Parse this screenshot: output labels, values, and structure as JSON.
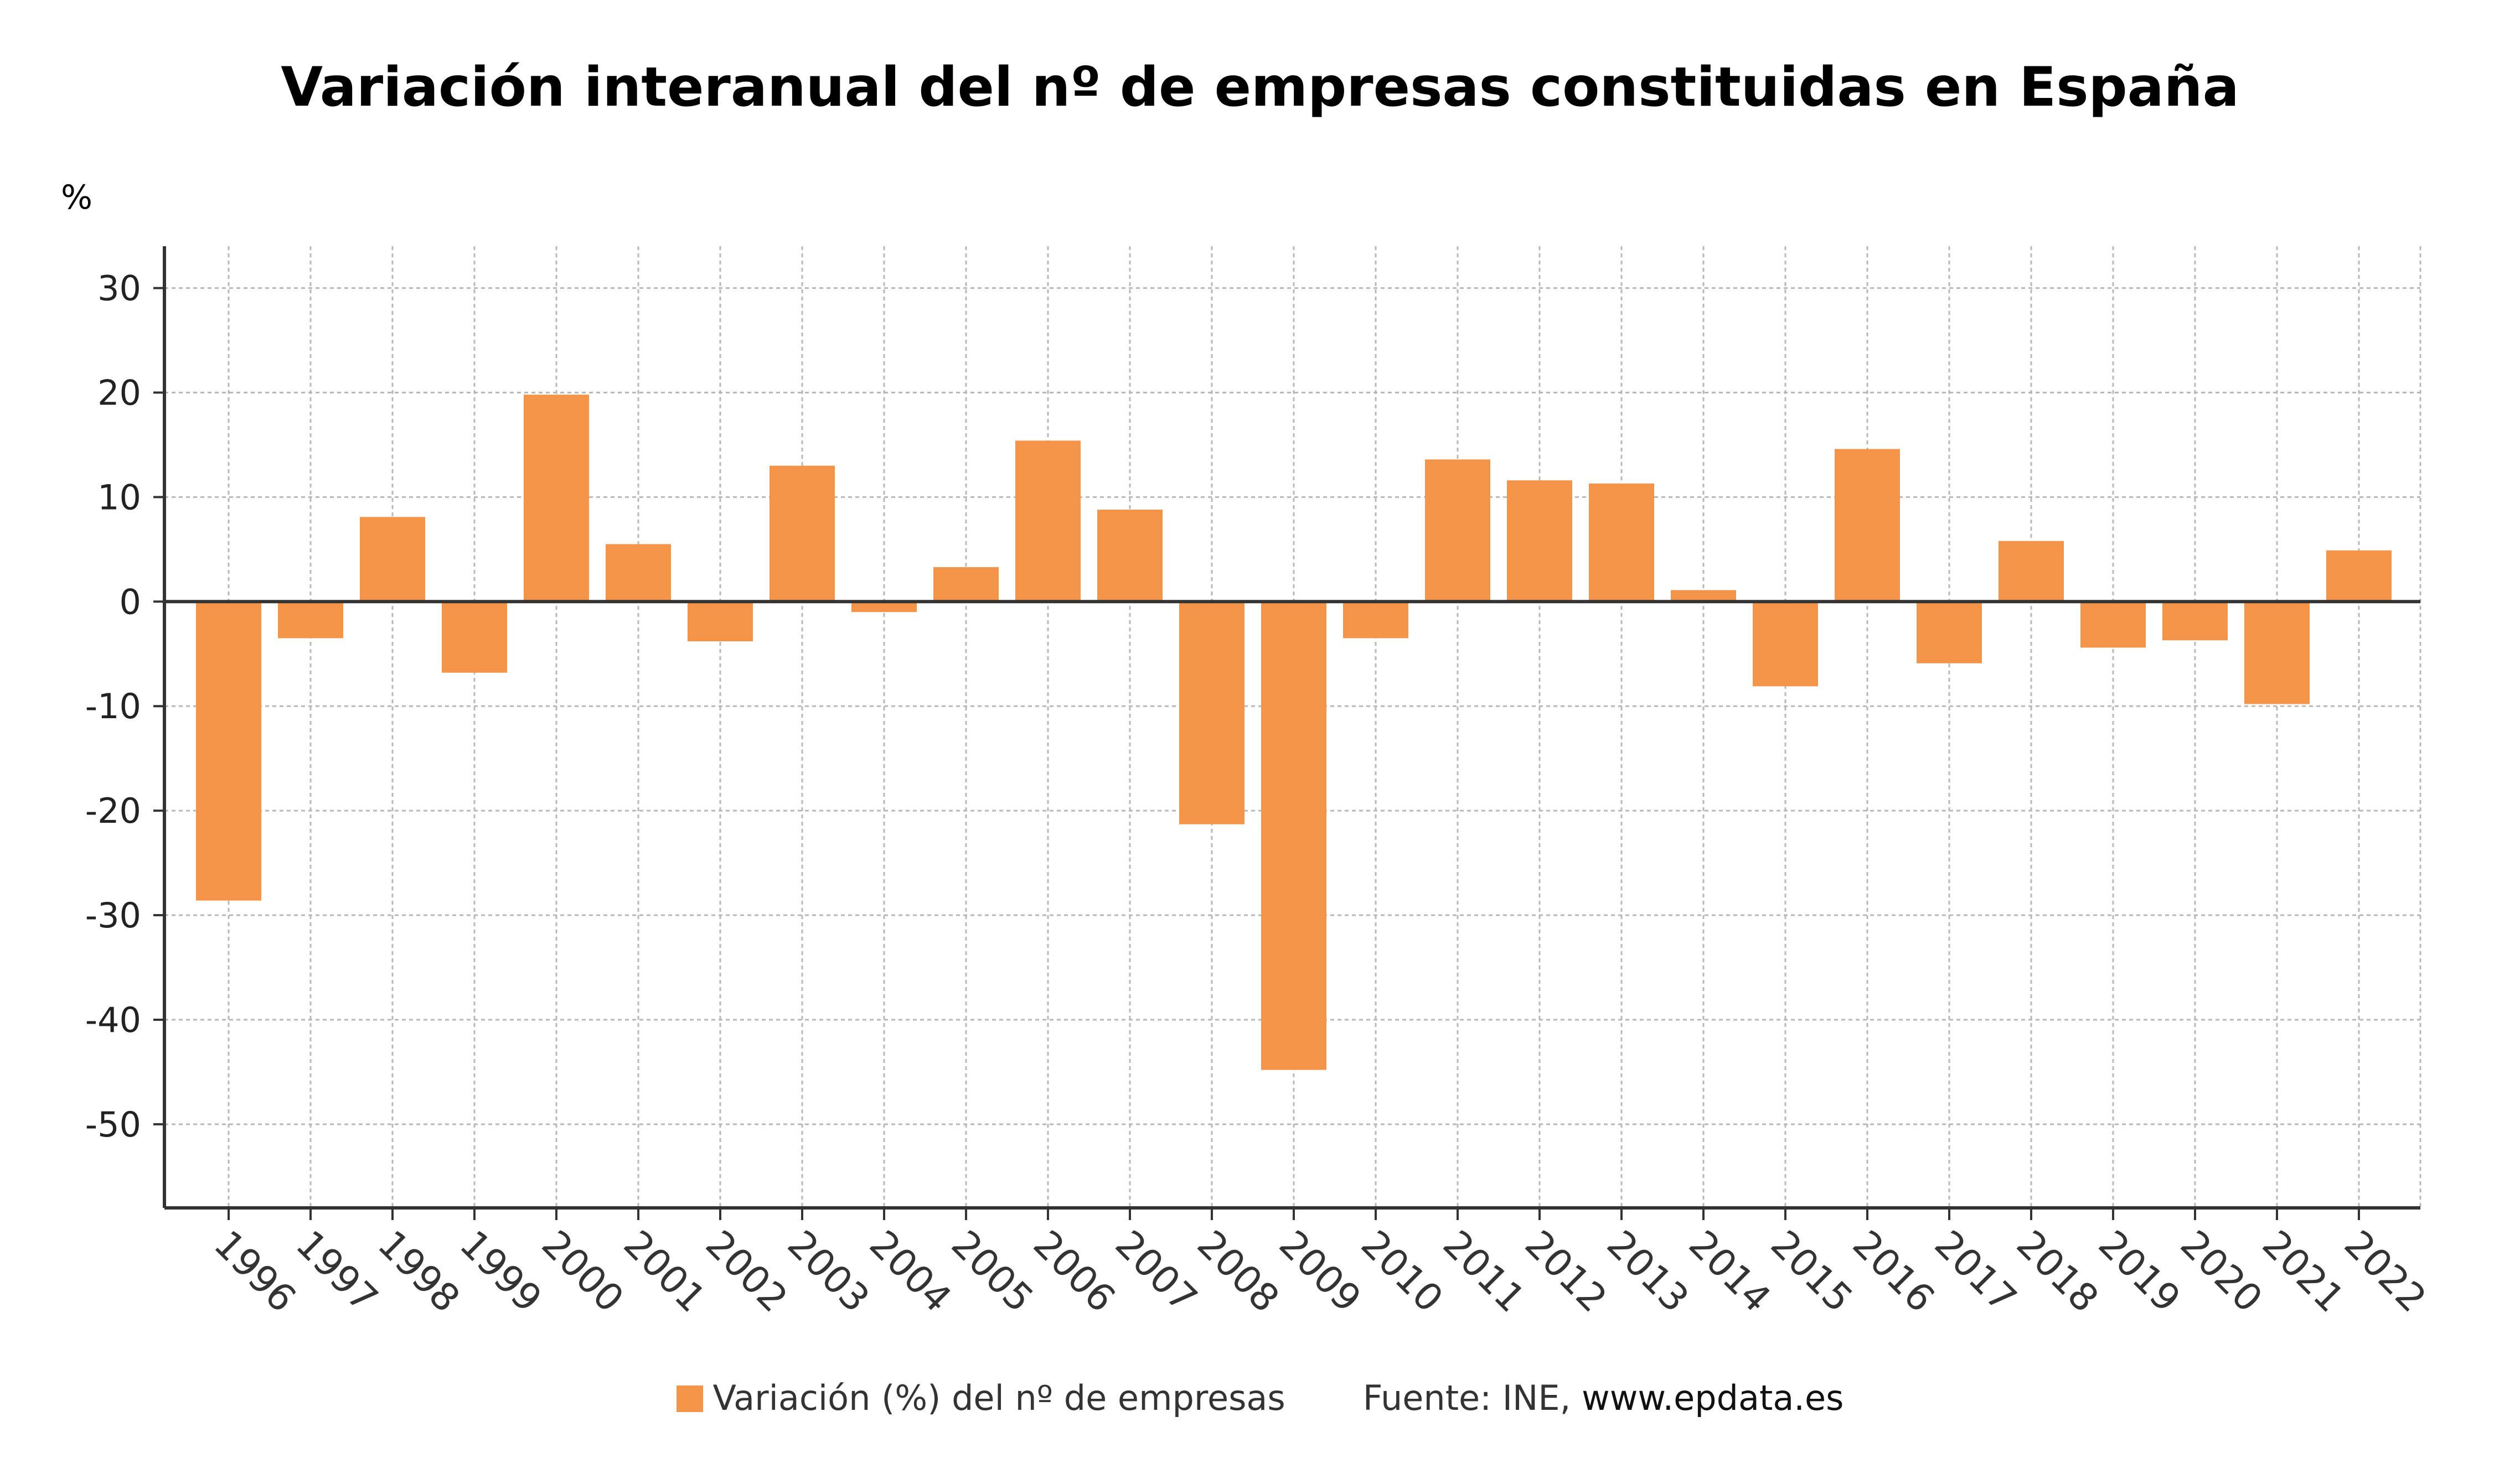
{
  "chart_data": {
    "type": "bar",
    "title": "Variación interanual del nº de empresas constituidas en España",
    "ylabel": "%",
    "xlabel": "",
    "categories": [
      "1996",
      "1997",
      "1998",
      "1999",
      "2000",
      "2001",
      "2002",
      "2003",
      "2004",
      "2005",
      "2006",
      "2007",
      "2008",
      "2009",
      "2010",
      "2011",
      "2012",
      "2013",
      "2014",
      "2015",
      "2016",
      "2017",
      "2018",
      "2019",
      "2020",
      "2021",
      "2022"
    ],
    "series": [
      {
        "name": "Variación (%) del nº de empresas",
        "values": [
          -28.6,
          -3.5,
          8.1,
          -6.8,
          19.8,
          5.5,
          -3.8,
          13.0,
          -1.0,
          3.3,
          15.4,
          8.8,
          -21.3,
          -44.8,
          -3.5,
          13.6,
          11.6,
          11.3,
          1.1,
          -8.1,
          14.6,
          -5.9,
          5.8,
          -4.4,
          -3.7,
          -9.8,
          4.9
        ]
      }
    ],
    "ylim": [
      -58,
      34
    ],
    "yticks": [
      30,
      20,
      10,
      0,
      -10,
      -20,
      -30,
      -40,
      -50
    ],
    "grid": true,
    "legend_position": "bottom",
    "bar_color": "#f39448"
  },
  "footer": {
    "legend_label": "Variación (%) del nº de empresas",
    "source_prefix": "Fuente: INE,",
    "source_site": "www.epdata.es"
  }
}
